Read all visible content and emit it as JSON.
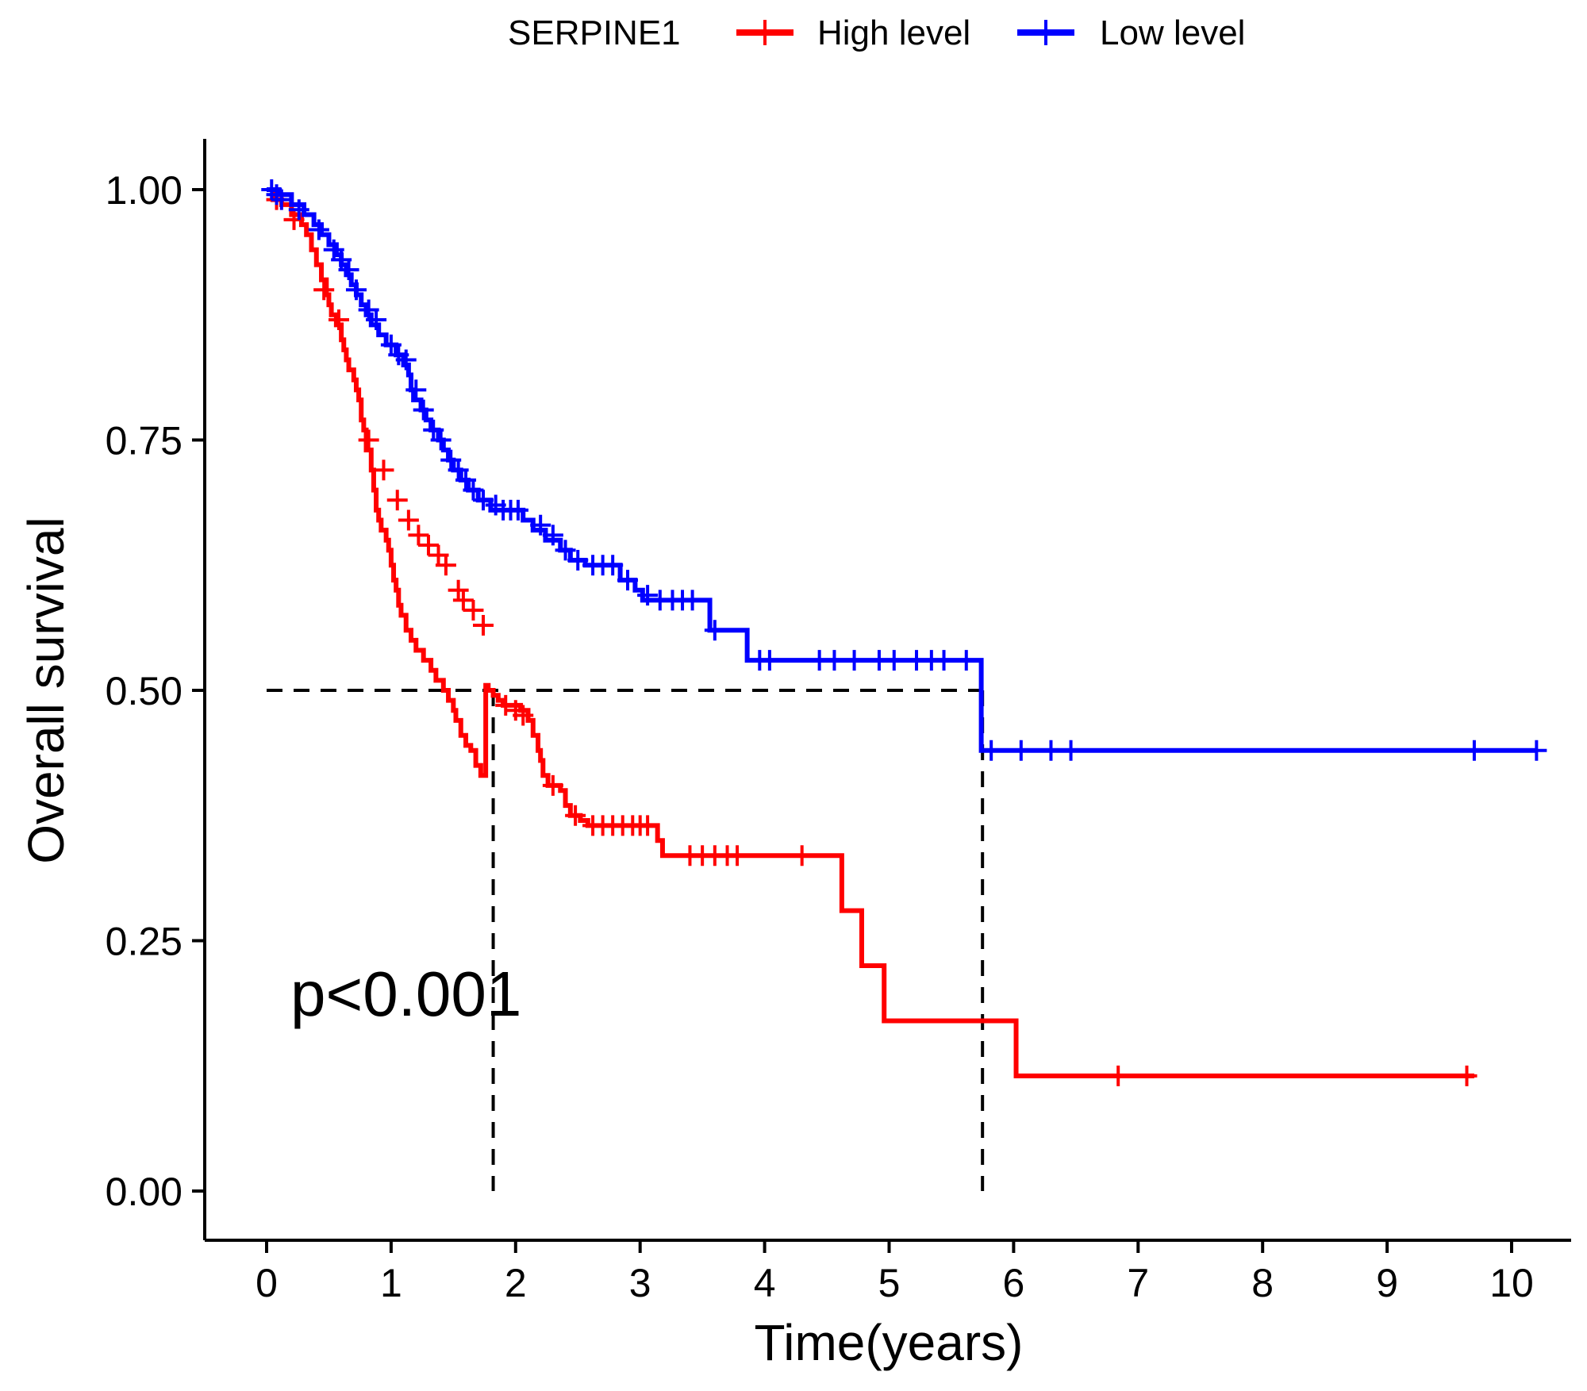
{
  "chart_data": {
    "type": "line",
    "subtype": "kaplan-meier",
    "title": "",
    "xlabel": "Time(years)",
    "ylabel": "Overall survival",
    "xlim": [
      -0.5,
      10.5
    ],
    "ylim": [
      -0.05,
      1.05
    ],
    "x_ticks": [
      0,
      1,
      2,
      3,
      4,
      5,
      6,
      7,
      8,
      9,
      10
    ],
    "y_ticks": [
      0.0,
      0.25,
      0.5,
      0.75,
      1.0
    ],
    "x_tick_labels": [
      "0",
      "1",
      "2",
      "3",
      "4",
      "5",
      "6",
      "7",
      "8",
      "9",
      "10"
    ],
    "y_tick_labels": [
      "0.00",
      "0.25",
      "0.50",
      "0.75",
      "1.00"
    ],
    "legend": {
      "title": "SERPINE1",
      "position": "top",
      "entries": [
        "High level",
        "Low level"
      ]
    },
    "annotation": "p<0.001",
    "colors": {
      "high": "#FF0000",
      "low": "#0000FF",
      "reference": "#000000"
    },
    "median_survival": {
      "High level": 1.82,
      "Low level": 5.75
    },
    "series": [
      {
        "name": "High level",
        "color": "#FF0000",
        "steps": [
          [
            0,
            1.0
          ],
          [
            0.05,
            0.99
          ],
          [
            0.12,
            0.985
          ],
          [
            0.2,
            0.975
          ],
          [
            0.28,
            0.965
          ],
          [
            0.32,
            0.955
          ],
          [
            0.36,
            0.94
          ],
          [
            0.4,
            0.925
          ],
          [
            0.44,
            0.91
          ],
          [
            0.48,
            0.895
          ],
          [
            0.5,
            0.885
          ],
          [
            0.52,
            0.875
          ],
          [
            0.56,
            0.865
          ],
          [
            0.6,
            0.85
          ],
          [
            0.62,
            0.84
          ],
          [
            0.64,
            0.83
          ],
          [
            0.66,
            0.82
          ],
          [
            0.7,
            0.81
          ],
          [
            0.72,
            0.8
          ],
          [
            0.74,
            0.79
          ],
          [
            0.76,
            0.77
          ],
          [
            0.78,
            0.76
          ],
          [
            0.8,
            0.74
          ],
          [
            0.84,
            0.72
          ],
          [
            0.86,
            0.7
          ],
          [
            0.88,
            0.68
          ],
          [
            0.9,
            0.67
          ],
          [
            0.92,
            0.66
          ],
          [
            0.96,
            0.65
          ],
          [
            0.98,
            0.64
          ],
          [
            1.0,
            0.625
          ],
          [
            1.02,
            0.61
          ],
          [
            1.04,
            0.6
          ],
          [
            1.06,
            0.585
          ],
          [
            1.08,
            0.575
          ],
          [
            1.12,
            0.56
          ],
          [
            1.16,
            0.55
          ],
          [
            1.2,
            0.54
          ],
          [
            1.26,
            0.53
          ],
          [
            1.32,
            0.52
          ],
          [
            1.36,
            0.51
          ],
          [
            1.42,
            0.5
          ],
          [
            1.46,
            0.49
          ],
          [
            1.5,
            0.48
          ],
          [
            1.52,
            0.47
          ],
          [
            1.56,
            0.455
          ],
          [
            1.6,
            0.445
          ],
          [
            1.64,
            0.44
          ],
          [
            1.68,
            0.425
          ],
          [
            1.72,
            0.415
          ],
          [
            1.76,
            0.505
          ],
          [
            1.78,
            0.5
          ],
          [
            1.82,
            0.495
          ],
          [
            1.86,
            0.49
          ],
          [
            1.9,
            0.485
          ],
          [
            2.04,
            0.48
          ],
          [
            2.1,
            0.47
          ],
          [
            2.14,
            0.455
          ],
          [
            2.18,
            0.44
          ],
          [
            2.2,
            0.43
          ],
          [
            2.22,
            0.415
          ],
          [
            2.26,
            0.405
          ],
          [
            2.36,
            0.4
          ],
          [
            2.4,
            0.385
          ],
          [
            2.44,
            0.375
          ],
          [
            2.52,
            0.37
          ],
          [
            2.58,
            0.365
          ],
          [
            3.14,
            0.35
          ],
          [
            3.18,
            0.335
          ],
          [
            4.62,
            0.28
          ],
          [
            4.78,
            0.225
          ],
          [
            4.96,
            0.17
          ],
          [
            6.02,
            0.115
          ],
          [
            9.7,
            0.115
          ]
        ],
        "censor": [
          [
            0.08,
            0.99
          ],
          [
            0.22,
            0.97
          ],
          [
            0.46,
            0.9
          ],
          [
            0.58,
            0.87
          ],
          [
            0.82,
            0.75
          ],
          [
            0.94,
            0.72
          ],
          [
            1.05,
            0.69
          ],
          [
            1.14,
            0.67
          ],
          [
            1.22,
            0.655
          ],
          [
            1.3,
            0.645
          ],
          [
            1.38,
            0.635
          ],
          [
            1.44,
            0.625
          ],
          [
            1.54,
            0.6
          ],
          [
            1.58,
            0.59
          ],
          [
            1.66,
            0.58
          ],
          [
            1.74,
            0.565
          ],
          [
            1.92,
            0.485
          ],
          [
            2.0,
            0.48
          ],
          [
            2.06,
            0.475
          ],
          [
            2.3,
            0.405
          ],
          [
            2.48,
            0.375
          ],
          [
            2.62,
            0.365
          ],
          [
            2.7,
            0.365
          ],
          [
            2.78,
            0.365
          ],
          [
            2.86,
            0.365
          ],
          [
            2.94,
            0.365
          ],
          [
            3.0,
            0.365
          ],
          [
            3.06,
            0.365
          ],
          [
            3.4,
            0.335
          ],
          [
            3.5,
            0.335
          ],
          [
            3.6,
            0.335
          ],
          [
            3.7,
            0.335
          ],
          [
            3.78,
            0.335
          ],
          [
            4.3,
            0.335
          ],
          [
            6.84,
            0.115
          ],
          [
            9.64,
            0.115
          ]
        ]
      },
      {
        "name": "Low level",
        "color": "#0000FF",
        "steps": [
          [
            0,
            1.0
          ],
          [
            0.1,
            0.995
          ],
          [
            0.2,
            0.985
          ],
          [
            0.3,
            0.975
          ],
          [
            0.38,
            0.965
          ],
          [
            0.44,
            0.955
          ],
          [
            0.5,
            0.945
          ],
          [
            0.56,
            0.935
          ],
          [
            0.6,
            0.925
          ],
          [
            0.64,
            0.915
          ],
          [
            0.68,
            0.905
          ],
          [
            0.72,
            0.895
          ],
          [
            0.76,
            0.885
          ],
          [
            0.8,
            0.875
          ],
          [
            0.84,
            0.865
          ],
          [
            0.9,
            0.855
          ],
          [
            0.96,
            0.845
          ],
          [
            1.04,
            0.835
          ],
          [
            1.1,
            0.825
          ],
          [
            1.14,
            0.815
          ],
          [
            1.16,
            0.8
          ],
          [
            1.18,
            0.79
          ],
          [
            1.24,
            0.78
          ],
          [
            1.28,
            0.77
          ],
          [
            1.32,
            0.76
          ],
          [
            1.38,
            0.75
          ],
          [
            1.42,
            0.74
          ],
          [
            1.46,
            0.73
          ],
          [
            1.5,
            0.72
          ],
          [
            1.56,
            0.71
          ],
          [
            1.62,
            0.7
          ],
          [
            1.7,
            0.69
          ],
          [
            1.8,
            0.68
          ],
          [
            2.06,
            0.67
          ],
          [
            2.14,
            0.66
          ],
          [
            2.24,
            0.65
          ],
          [
            2.36,
            0.64
          ],
          [
            2.44,
            0.63
          ],
          [
            2.56,
            0.625
          ],
          [
            2.84,
            0.61
          ],
          [
            2.96,
            0.6
          ],
          [
            3.02,
            0.59
          ],
          [
            3.56,
            0.56
          ],
          [
            3.86,
            0.53
          ],
          [
            5.74,
            0.44
          ],
          [
            10.2,
            0.44
          ]
        ],
        "censor": [
          [
            0.04,
            1.0
          ],
          [
            0.08,
            0.995
          ],
          [
            0.12,
            0.99
          ],
          [
            0.26,
            0.98
          ],
          [
            0.42,
            0.96
          ],
          [
            0.54,
            0.94
          ],
          [
            0.6,
            0.93
          ],
          [
            0.66,
            0.92
          ],
          [
            0.72,
            0.9
          ],
          [
            0.82,
            0.88
          ],
          [
            0.88,
            0.87
          ],
          [
            1.0,
            0.845
          ],
          [
            1.06,
            0.835
          ],
          [
            1.12,
            0.83
          ],
          [
            1.2,
            0.8
          ],
          [
            1.26,
            0.78
          ],
          [
            1.34,
            0.76
          ],
          [
            1.4,
            0.75
          ],
          [
            1.48,
            0.73
          ],
          [
            1.54,
            0.72
          ],
          [
            1.6,
            0.71
          ],
          [
            1.66,
            0.7
          ],
          [
            1.74,
            0.69
          ],
          [
            1.84,
            0.685
          ],
          [
            1.9,
            0.68
          ],
          [
            1.96,
            0.68
          ],
          [
            2.02,
            0.68
          ],
          [
            2.2,
            0.665
          ],
          [
            2.3,
            0.655
          ],
          [
            2.4,
            0.64
          ],
          [
            2.5,
            0.63
          ],
          [
            2.62,
            0.625
          ],
          [
            2.7,
            0.625
          ],
          [
            2.78,
            0.625
          ],
          [
            2.9,
            0.61
          ],
          [
            3.06,
            0.595
          ],
          [
            3.16,
            0.59
          ],
          [
            3.26,
            0.59
          ],
          [
            3.34,
            0.59
          ],
          [
            3.42,
            0.59
          ],
          [
            3.6,
            0.56
          ],
          [
            3.96,
            0.53
          ],
          [
            4.04,
            0.53
          ],
          [
            4.44,
            0.53
          ],
          [
            4.56,
            0.53
          ],
          [
            4.72,
            0.53
          ],
          [
            4.92,
            0.53
          ],
          [
            5.04,
            0.53
          ],
          [
            5.22,
            0.53
          ],
          [
            5.34,
            0.53
          ],
          [
            5.44,
            0.53
          ],
          [
            5.62,
            0.53
          ],
          [
            5.82,
            0.44
          ],
          [
            6.06,
            0.44
          ],
          [
            6.3,
            0.44
          ],
          [
            6.46,
            0.44
          ],
          [
            9.7,
            0.44
          ],
          [
            10.2,
            0.44
          ]
        ]
      }
    ]
  }
}
